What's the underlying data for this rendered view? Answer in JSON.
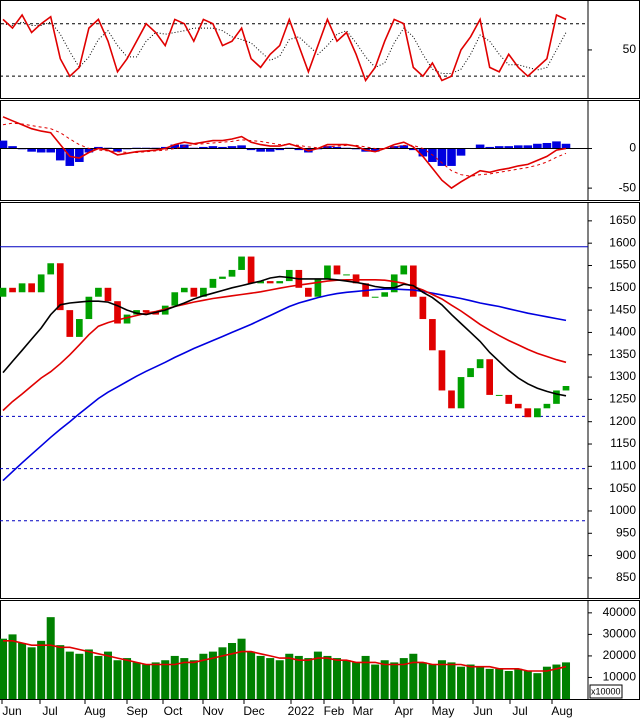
{
  "chart_data": [
    {
      "type": "line",
      "ylim": [
        -5,
        106
      ],
      "yticks": [
        50
      ],
      "hlines": [
        {
          "value": 80,
          "color": "#000000",
          "style": "dashed"
        },
        {
          "value": 20,
          "color": "#000000",
          "style": "dashed"
        }
      ],
      "series": [
        {
          "color": "#000000",
          "style": "dotted",
          "values": [
            80,
            78,
            82,
            78,
            78,
            82,
            68,
            48,
            30,
            42,
            62,
            72,
            55,
            42,
            42,
            60,
            70,
            68,
            70,
            72,
            75,
            75,
            75,
            72,
            65,
            62,
            58,
            48,
            38,
            43,
            62,
            65,
            55,
            45,
            55,
            68,
            72,
            58,
            42,
            30,
            35,
            58,
            75,
            65,
            45,
            28,
            23,
            23,
            28,
            45,
            67,
            60,
            45,
            33,
            33,
            30,
            27,
            30,
            50,
            70
          ]
        },
        {
          "color": "#e00000",
          "style": "line",
          "values": [
            85,
            75,
            90,
            70,
            80,
            88,
            40,
            20,
            30,
            75,
            85,
            60,
            25,
            40,
            60,
            80,
            70,
            55,
            85,
            80,
            60,
            85,
            80,
            55,
            60,
            75,
            40,
            30,
            45,
            55,
            85,
            55,
            25,
            55,
            85,
            60,
            70,
            45,
            15,
            30,
            60,
            85,
            80,
            30,
            20,
            35,
            15,
            20,
            50,
            65,
            85,
            30,
            25,
            45,
            30,
            20,
            30,
            40,
            90,
            85
          ]
        }
      ]
    },
    {
      "type": "macd",
      "ylim": [
        -65,
        60
      ],
      "yticks": [
        0,
        -50
      ],
      "series": [
        {
          "color": "#0000e0",
          "style": "bar",
          "values": [
            10,
            3,
            -1,
            -4,
            -5,
            -5,
            -15,
            -22,
            -17,
            -5,
            2,
            1,
            -4,
            -1,
            1,
            1,
            1,
            2,
            5,
            5,
            1,
            2,
            3,
            2,
            3,
            4,
            -2,
            -4,
            -4,
            -2,
            1,
            -2,
            -5,
            -1,
            3,
            2,
            1,
            -1,
            -4,
            -4,
            0,
            3,
            4,
            -2,
            -10,
            -17,
            -22,
            -22,
            -9,
            0,
            5,
            2,
            3,
            3,
            4,
            4,
            6,
            7,
            9,
            6
          ]
        },
        {
          "color": "#e00000",
          "style": "dashed",
          "values": [
            30,
            32,
            31,
            29,
            27,
            25,
            20,
            12,
            5,
            0,
            -2,
            -3,
            -4,
            -5,
            -5,
            -4,
            -3,
            -2,
            0,
            3,
            5,
            6,
            7,
            8,
            9,
            11,
            10,
            9,
            7,
            5,
            5,
            4,
            2,
            1,
            2,
            3,
            4,
            4,
            2,
            0,
            0,
            2,
            4,
            4,
            0,
            -8,
            -18,
            -28,
            -33,
            -35,
            -33,
            -32,
            -30,
            -28,
            -26,
            -24,
            -21,
            -17,
            -11,
            -6
          ]
        },
        {
          "color": "#e00000",
          "style": "line",
          "values": [
            40,
            35,
            30,
            25,
            22,
            20,
            5,
            -10,
            -12,
            -5,
            0,
            -2,
            -8,
            -6,
            -4,
            -3,
            -2,
            0,
            5,
            8,
            6,
            8,
            10,
            10,
            12,
            15,
            8,
            5,
            3,
            3,
            6,
            2,
            -3,
            0,
            5,
            5,
            5,
            3,
            -2,
            -4,
            0,
            5,
            8,
            2,
            -10,
            -25,
            -40,
            -50,
            -42,
            -35,
            -28,
            -30,
            -27,
            -25,
            -22,
            -20,
            -15,
            -10,
            -2,
            0
          ]
        }
      ]
    },
    {
      "type": "candlestick",
      "ylim": [
        805,
        1690
      ],
      "yticks": [
        850,
        900,
        950,
        1000,
        1050,
        1100,
        1150,
        1200,
        1250,
        1300,
        1350,
        1400,
        1450,
        1500,
        1550,
        1600,
        1650
      ],
      "up_color": "#00a000",
      "down_color": "#e00000",
      "open": [
        1480,
        1500,
        1490,
        1510,
        1490,
        1530,
        1555,
        1450,
        1390,
        1430,
        1480,
        1500,
        1470,
        1420,
        1440,
        1450,
        1445,
        1440,
        1460,
        1490,
        1500,
        1480,
        1500,
        1520,
        1525,
        1540,
        1570,
        1510,
        1515,
        1510,
        1515,
        1540,
        1500,
        1480,
        1520,
        1550,
        1530,
        1530,
        1510,
        1480,
        1480,
        1490,
        1530,
        1550,
        1480,
        1430,
        1360,
        1270,
        1230,
        1300,
        1320,
        1340,
        1260,
        1260,
        1240,
        1230,
        1210,
        1230,
        1240,
        1270
      ],
      "close": [
        1500,
        1490,
        1510,
        1490,
        1530,
        1555,
        1450,
        1390,
        1430,
        1480,
        1500,
        1470,
        1420,
        1440,
        1450,
        1445,
        1440,
        1460,
        1490,
        1500,
        1480,
        1500,
        1520,
        1525,
        1540,
        1570,
        1510,
        1515,
        1510,
        1515,
        1540,
        1500,
        1480,
        1520,
        1550,
        1530,
        1530,
        1510,
        1480,
        1480,
        1490,
        1530,
        1550,
        1480,
        1430,
        1360,
        1270,
        1230,
        1300,
        1320,
        1340,
        1260,
        1260,
        1240,
        1230,
        1210,
        1230,
        1240,
        1270,
        1280
      ],
      "hlines": [
        {
          "value": 1592,
          "color": "#0000c0",
          "style": "solid"
        },
        {
          "value": 1212,
          "color": "#0000c0",
          "style": "dashed"
        },
        {
          "value": 1095,
          "color": "#0000c0",
          "style": "dashed"
        },
        {
          "value": 978,
          "color": "#0000c0",
          "style": "dashed"
        }
      ],
      "series": [
        {
          "color": "#0000e0",
          "style": "line",
          "values": [
            1068,
            1088,
            1108,
            1127,
            1146,
            1165,
            1183,
            1200,
            1218,
            1235,
            1252,
            1266,
            1278,
            1290,
            1302,
            1313,
            1323,
            1333,
            1344,
            1354,
            1364,
            1373,
            1382,
            1391,
            1400,
            1409,
            1418,
            1428,
            1438,
            1448,
            1458,
            1466,
            1472,
            1478,
            1483,
            1487,
            1490,
            1492,
            1494,
            1496,
            1497,
            1497,
            1496,
            1495,
            1492,
            1488,
            1484,
            1480,
            1476,
            1471,
            1466,
            1462,
            1458,
            1453,
            1448,
            1443,
            1439,
            1435,
            1431,
            1427
          ]
        },
        {
          "color": "#e00000",
          "style": "line",
          "values": [
            1225,
            1245,
            1262,
            1280,
            1298,
            1312,
            1330,
            1350,
            1372,
            1395,
            1414,
            1422,
            1428,
            1433,
            1438,
            1443,
            1447,
            1452,
            1458,
            1463,
            1468,
            1472,
            1476,
            1479,
            1482,
            1485,
            1488,
            1491,
            1495,
            1499,
            1503,
            1506,
            1509,
            1512,
            1515,
            1517,
            1518,
            1518,
            1518,
            1518,
            1517,
            1514,
            1510,
            1503,
            1495,
            1485,
            1475,
            1461,
            1448,
            1433,
            1418,
            1405,
            1393,
            1382,
            1372,
            1362,
            1353,
            1346,
            1339,
            1333
          ]
        },
        {
          "color": "#000000",
          "style": "line",
          "values": [
            1310,
            1335,
            1360,
            1385,
            1410,
            1440,
            1462,
            1466,
            1468,
            1470,
            1470,
            1468,
            1460,
            1450,
            1443,
            1440,
            1445,
            1450,
            1458,
            1466,
            1475,
            1482,
            1488,
            1494,
            1500,
            1505,
            1510,
            1515,
            1522,
            1525,
            1523,
            1520,
            1520,
            1520,
            1520,
            1518,
            1515,
            1512,
            1508,
            1503,
            1500,
            1500,
            1508,
            1505,
            1490,
            1478,
            1462,
            1440,
            1420,
            1400,
            1380,
            1355,
            1335,
            1315,
            1298,
            1285,
            1275,
            1268,
            1262,
            1258
          ]
        }
      ]
    },
    {
      "type": "bar",
      "ylim": [
        0,
        45500
      ],
      "yticks": [
        10000,
        20000,
        30000,
        40000
      ],
      "color": "#008000",
      "unit_label": "x10000",
      "values": [
        28000,
        30000,
        26000,
        24000,
        27000,
        38000,
        25000,
        22000,
        21000,
        23000,
        20000,
        22000,
        18000,
        19000,
        17000,
        16000,
        17000,
        18000,
        20000,
        19000,
        18000,
        21000,
        22000,
        24000,
        26000,
        28000,
        22000,
        20000,
        19000,
        18000,
        21000,
        20000,
        19000,
        22000,
        20000,
        19000,
        18000,
        17000,
        20000,
        16000,
        18000,
        17000,
        19000,
        21000,
        17000,
        16000,
        18000,
        17000,
        15000,
        16000,
        15000,
        14000,
        14000,
        13000,
        14000,
        13000,
        12000,
        15000,
        16000,
        17000
      ],
      "series": [
        {
          "color": "#e00000",
          "style": "line",
          "values": [
            27000,
            27000,
            26000,
            25000,
            25000,
            25000,
            24000,
            24000,
            23000,
            22000,
            21000,
            20000,
            19000,
            18000,
            17000,
            16000,
            16000,
            16000,
            16000,
            17000,
            17000,
            18000,
            19000,
            20000,
            21000,
            22000,
            22000,
            21000,
            20000,
            19000,
            19000,
            18000,
            18000,
            19000,
            19000,
            18000,
            18000,
            17000,
            17000,
            17000,
            16000,
            16000,
            16000,
            17000,
            17000,
            16000,
            16000,
            16000,
            16000,
            15000,
            15000,
            15000,
            14000,
            14000,
            14000,
            13000,
            13000,
            13000,
            14000,
            15000
          ]
        }
      ],
      "x_labels": [
        "Jun",
        "Jul",
        "Aug",
        "Sep",
        "Oct",
        "Nov",
        "Dec",
        "2022",
        "Feb",
        "Mar",
        "Apr",
        "May",
        "Jun",
        "Jul",
        "Aug"
      ]
    }
  ]
}
